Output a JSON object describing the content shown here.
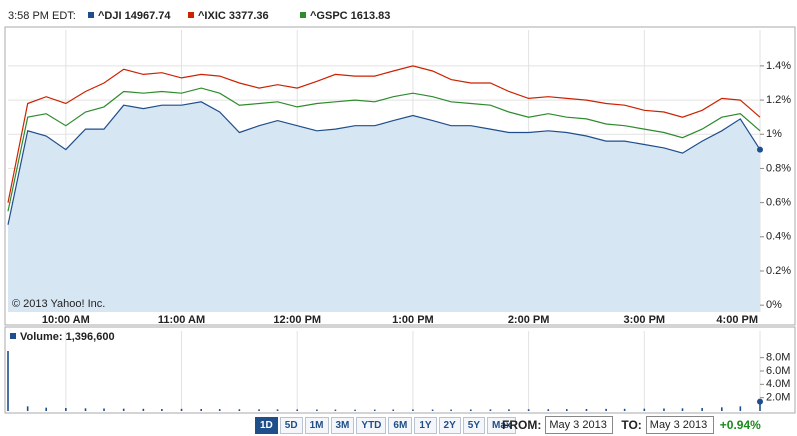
{
  "header": {
    "time": "3:58 PM EDT:"
  },
  "chart_data": [
    {
      "type": "line",
      "copyright": "© 2013 Yahoo! Inc.",
      "x": [
        9.5,
        9.67,
        9.83,
        10,
        10.17,
        10.33,
        10.5,
        10.67,
        10.83,
        11,
        11.17,
        11.33,
        11.5,
        11.67,
        11.83,
        12,
        12.17,
        12.33,
        12.5,
        12.67,
        12.83,
        13,
        13.17,
        13.33,
        13.5,
        13.67,
        13.83,
        14,
        14.17,
        14.33,
        14.5,
        14.67,
        14.83,
        15,
        15.17,
        15.33,
        15.5,
        15.67,
        15.83,
        16
      ],
      "series": [
        {
          "name": "^DJI 14967.74",
          "color": "#1f4e8c",
          "fill": "#d7e6f3",
          "values": [
            0.47,
            1.02,
            0.99,
            0.91,
            1.03,
            1.03,
            1.17,
            1.15,
            1.17,
            1.17,
            1.19,
            1.13,
            1.01,
            1.05,
            1.08,
            1.05,
            1.02,
            1.03,
            1.05,
            1.05,
            1.08,
            1.11,
            1.08,
            1.05,
            1.05,
            1.03,
            1.01,
            1.01,
            1.02,
            1.01,
            0.99,
            0.96,
            0.96,
            0.94,
            0.92,
            0.89,
            0.96,
            1.02,
            1.09,
            0.91
          ]
        },
        {
          "name": "^IXIC 3377.36",
          "color": "#cc2200",
          "values": [
            0.6,
            1.18,
            1.22,
            1.18,
            1.25,
            1.3,
            1.38,
            1.35,
            1.36,
            1.33,
            1.35,
            1.34,
            1.3,
            1.27,
            1.29,
            1.27,
            1.31,
            1.35,
            1.34,
            1.34,
            1.37,
            1.4,
            1.37,
            1.32,
            1.3,
            1.3,
            1.25,
            1.21,
            1.22,
            1.21,
            1.2,
            1.18,
            1.17,
            1.14,
            1.13,
            1.1,
            1.14,
            1.21,
            1.2,
            1.1
          ]
        },
        {
          "name": "^GSPC 1613.83",
          "color": "#2e8b2e",
          "values": [
            0.55,
            1.1,
            1.12,
            1.05,
            1.13,
            1.16,
            1.25,
            1.24,
            1.25,
            1.24,
            1.27,
            1.24,
            1.17,
            1.18,
            1.19,
            1.16,
            1.18,
            1.19,
            1.2,
            1.19,
            1.22,
            1.24,
            1.22,
            1.19,
            1.18,
            1.17,
            1.13,
            1.1,
            1.12,
            1.1,
            1.09,
            1.06,
            1.05,
            1.03,
            1.01,
            0.98,
            1.03,
            1.1,
            1.12,
            1.02
          ]
        }
      ],
      "xlim": [
        9.5,
        16
      ],
      "xticks": [
        {
          "value": 10,
          "label": "10:00 AM"
        },
        {
          "value": 11,
          "label": "11:00 AM"
        },
        {
          "value": 12,
          "label": "12:00 PM"
        },
        {
          "value": 13,
          "label": "1:00 PM"
        },
        {
          "value": 14,
          "label": "2:00 PM"
        },
        {
          "value": 15,
          "label": "3:00 PM"
        },
        {
          "value": 16,
          "label": "4:00 PM"
        }
      ],
      "ylim": [
        -0.04,
        1.61
      ],
      "yticks": [
        {
          "value": 0,
          "label": "0%"
        },
        {
          "value": 0.2,
          "label": "0.2%"
        },
        {
          "value": 0.4,
          "label": "0.4%"
        },
        {
          "value": 0.6,
          "label": "0.6%"
        },
        {
          "value": 0.8,
          "label": "0.8%"
        },
        {
          "value": 1,
          "label": "1%"
        },
        {
          "value": 1.2,
          "label": "1.2%"
        },
        {
          "value": 1.4,
          "label": "1.4%"
        }
      ],
      "grid": true
    },
    {
      "type": "bar",
      "title": "Volume: 1,396,600",
      "color": "#1f4e8c",
      "x": [
        9.5,
        9.67,
        9.83,
        10,
        10.17,
        10.33,
        10.5,
        10.67,
        10.83,
        11,
        11.17,
        11.33,
        11.5,
        11.67,
        11.83,
        12,
        12.17,
        12.33,
        12.5,
        12.67,
        12.83,
        13,
        13.17,
        13.33,
        13.5,
        13.67,
        13.83,
        14,
        14.17,
        14.33,
        14.5,
        14.67,
        14.83,
        15,
        15.17,
        15.33,
        15.5,
        15.67,
        15.83,
        16
      ],
      "values": [
        9000000,
        700000,
        500000,
        450000,
        400000,
        380000,
        350000,
        330000,
        300000,
        320000,
        300000,
        280000,
        260000,
        250000,
        240000,
        230000,
        220000,
        210000,
        200000,
        210000,
        220000,
        230000,
        220000,
        210000,
        230000,
        240000,
        250000,
        260000,
        270000,
        280000,
        300000,
        320000,
        330000,
        350000,
        380000,
        400000,
        450000,
        550000,
        700000,
        1400000
      ],
      "xlim": [
        9.5,
        16
      ],
      "ylim": [
        0,
        12000000
      ],
      "yticks": [
        {
          "value": 2000000,
          "label": "2.0M"
        },
        {
          "value": 4000000,
          "label": "4.0M"
        },
        {
          "value": 6000000,
          "label": "6.0M"
        },
        {
          "value": 8000000,
          "label": "8.0M"
        }
      ],
      "grid": true
    }
  ],
  "controls": {
    "ranges": [
      "1D",
      "5D",
      "1M",
      "3M",
      "YTD",
      "6M",
      "1Y",
      "2Y",
      "5Y",
      "Max"
    ],
    "selected": 0,
    "from_label": "FROM:",
    "from": "May 3 2013",
    "to_label": "TO:",
    "to": "May 3 2013",
    "change": "+0.94%"
  }
}
